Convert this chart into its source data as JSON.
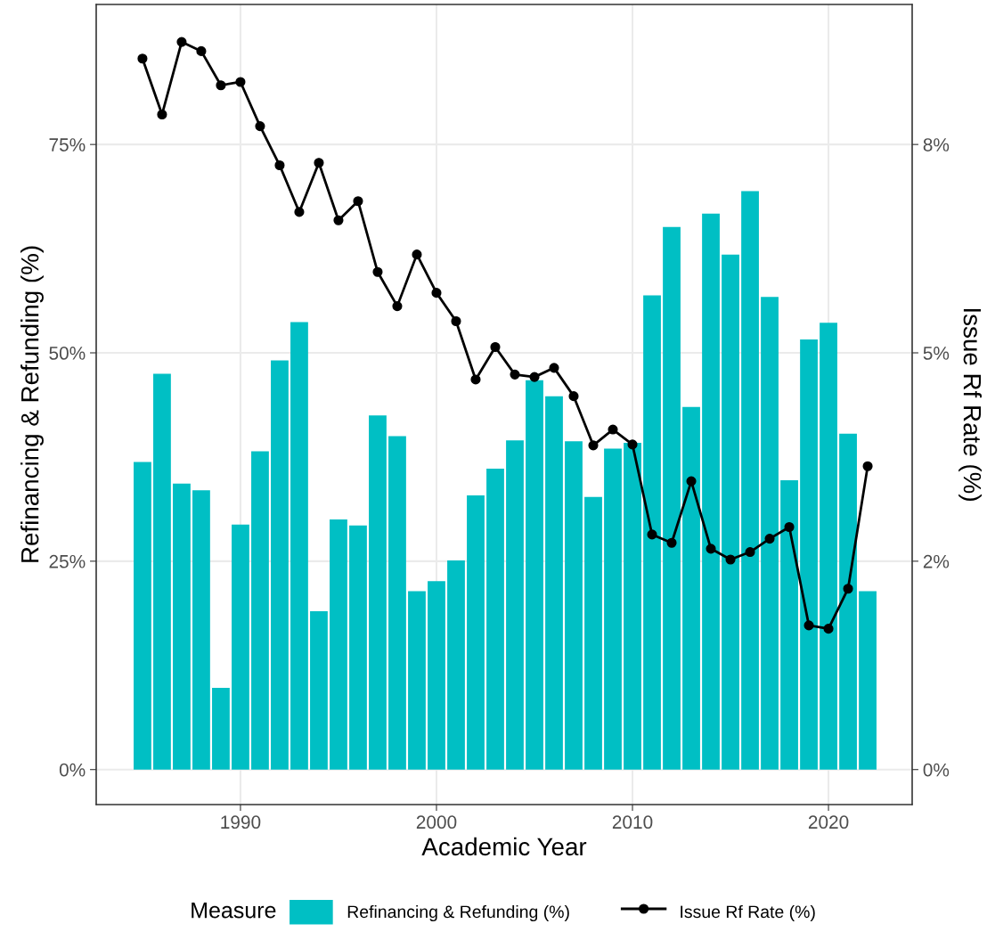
{
  "chart_data": {
    "type": "bar",
    "xlabel": "Academic Year",
    "ylabel": "Refinancing & Refunding (%)",
    "y2label": "Issue Rf Rate (%)",
    "legend_title": "Measure",
    "x": [
      1985,
      1986,
      1987,
      1988,
      1989,
      1990,
      1991,
      1992,
      1993,
      1994,
      1995,
      1996,
      1997,
      1998,
      1999,
      2000,
      2001,
      2002,
      2003,
      2004,
      2005,
      2006,
      2007,
      2008,
      2009,
      2010,
      2011,
      2012,
      2013,
      2014,
      2015,
      2016,
      2017,
      2018,
      2019,
      2020,
      2021,
      2022
    ],
    "series": [
      {
        "name": "Refinancing & Refunding (%)",
        "color": "#00bfc4",
        "values": [
          36.9,
          47.5,
          34.3,
          33.5,
          9.8,
          29.4,
          38.2,
          49.1,
          53.7,
          19.0,
          30.0,
          29.3,
          42.5,
          40.0,
          21.4,
          22.6,
          25.1,
          32.9,
          36.1,
          39.5,
          46.7,
          44.8,
          39.4,
          32.7,
          38.5,
          39.2,
          56.9,
          65.1,
          43.5,
          66.7,
          61.8,
          69.4,
          56.7,
          34.7,
          51.6,
          53.6,
          40.3,
          21.4
        ]
      },
      {
        "name": "Issue Rf Rate (%)",
        "type": "line",
        "axis": "y2",
        "color": "#000000",
        "marker": "circle",
        "line_style": "solid",
        "values": [
          8.53,
          7.86,
          8.73,
          8.62,
          8.21,
          8.25,
          7.72,
          7.25,
          6.69,
          7.28,
          6.59,
          6.82,
          5.97,
          5.56,
          6.18,
          5.72,
          5.38,
          4.68,
          5.07,
          4.74,
          4.71,
          4.82,
          4.48,
          3.89,
          4.08,
          3.9,
          2.82,
          2.72,
          3.46,
          2.65,
          2.52,
          2.61,
          2.77,
          2.91,
          1.73,
          1.69,
          2.17,
          3.64
        ]
      }
    ],
    "xlim": [
      1982.64,
      2024.27
    ],
    "xticks": [
      1990,
      2000,
      2010,
      2020
    ],
    "ylim": [
      -4.2,
      91.8
    ],
    "yticks": [
      {
        "value": 0,
        "label": "0%"
      },
      {
        "value": 25,
        "label": "25%"
      },
      {
        "value": 50,
        "label": "50%"
      },
      {
        "value": 75,
        "label": "75%"
      }
    ],
    "y2lim": [
      -0.42,
      9.18
    ],
    "y2ticks": [
      {
        "value": 0,
        "label": "0%"
      },
      {
        "value": 2.5,
        "label": "2%"
      },
      {
        "value": 5,
        "label": "5%"
      },
      {
        "value": 7.5,
        "label": "8%"
      }
    ],
    "grid": true,
    "legend": "bottom"
  }
}
